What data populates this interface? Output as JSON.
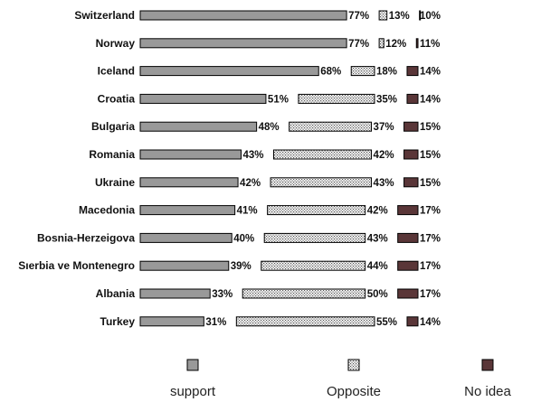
{
  "chart_data": {
    "type": "bar",
    "orientation": "horizontal",
    "stacked": true,
    "value_suffix": "%",
    "title": "",
    "xlabel": "",
    "ylabel": "",
    "xlim": [
      0,
      100
    ],
    "grid": false,
    "legend_position": "bottom",
    "categories": [
      "Switzerland",
      "Norway",
      "Iceland",
      "Croatia",
      "Bulgaria",
      "Romania",
      "Ukraine",
      "Macedonia",
      "Bosnia-Herzeigova",
      "Sıerbia ve Montenegro",
      "Albania",
      "Turkey"
    ],
    "series": [
      {
        "name": "support",
        "values": [
          77,
          77,
          68,
          51,
          48,
          43,
          42,
          41,
          40,
          39,
          33,
          31
        ],
        "color": "#999999",
        "pattern": "solid"
      },
      {
        "name": "Opposite",
        "values": [
          13,
          12,
          18,
          35,
          37,
          42,
          43,
          42,
          43,
          44,
          50,
          55
        ],
        "color": "#e8e8e8",
        "pattern": "dots"
      },
      {
        "name": "No idea",
        "values": [
          10,
          11,
          14,
          14,
          15,
          15,
          15,
          17,
          17,
          17,
          17,
          14
        ],
        "color": "#5a3638",
        "pattern": "solid"
      }
    ]
  }
}
